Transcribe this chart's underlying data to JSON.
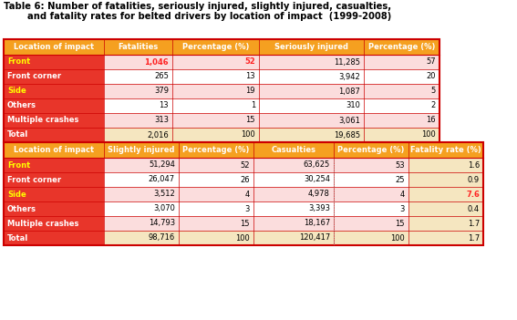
{
  "title_line1": "Table 6: Number of fatalities, seriously injured, slightly injured, casualties,",
  "title_line2": "and fatality rates for belted drivers by location of impact  (1999-2008)",
  "table1_headers": [
    "Location of impact",
    "Fatalities",
    "Percentage (%)",
    "Seriously injured",
    "Percentage (%)"
  ],
  "table1_rows": [
    [
      "Front",
      "1,046",
      "52",
      "11,285",
      "57"
    ],
    [
      "Front corner",
      "265",
      "13",
      "3,942",
      "20"
    ],
    [
      "Side",
      "379",
      "19",
      "1,087",
      "5"
    ],
    [
      "Others",
      "13",
      "1",
      "310",
      "2"
    ],
    [
      "Multiple crashes",
      "313",
      "15",
      "3,061",
      "16"
    ],
    [
      "Total",
      "2,016",
      "100",
      "19,685",
      "100"
    ]
  ],
  "table2_headers": [
    "Location of impact",
    "Slightly injured",
    "Percentage (%)",
    "Casualties",
    "Percentage (%)",
    "Fatality rate (%)"
  ],
  "table2_rows": [
    [
      "Front",
      "51,294",
      "52",
      "63,625",
      "53",
      "1.6"
    ],
    [
      "Front corner",
      "26,047",
      "26",
      "30,254",
      "25",
      "0.9"
    ],
    [
      "Side",
      "3,512",
      "4",
      "4,978",
      "4",
      "7.6"
    ],
    [
      "Others",
      "3,070",
      "3",
      "3,393",
      "3",
      "0.4"
    ],
    [
      "Multiple crashes",
      "14,793",
      "15",
      "18,167",
      "15",
      "1.7"
    ],
    [
      "Total",
      "98,716",
      "100",
      "120,417",
      "100",
      "1.7"
    ]
  ],
  "header_bg": "#F5A020",
  "header_text": "#FFFFFF",
  "location_col_bg": "#E8352A",
  "location_col_text": "#FFFFFF",
  "total_row_bg": "#E8352A",
  "total_row_text": "#FFFFFF",
  "data_row_bg_even": "#FBDDDD",
  "data_row_bg_odd": "#FFFFFF",
  "data_row_bg_total": "#F5E6C0",
  "border_color": "#CC0000",
  "title_color": "#000000",
  "normal_data_text": "#000000",
  "red_highlight": "#FF2222",
  "yellow_highlight": "#FFFF00"
}
